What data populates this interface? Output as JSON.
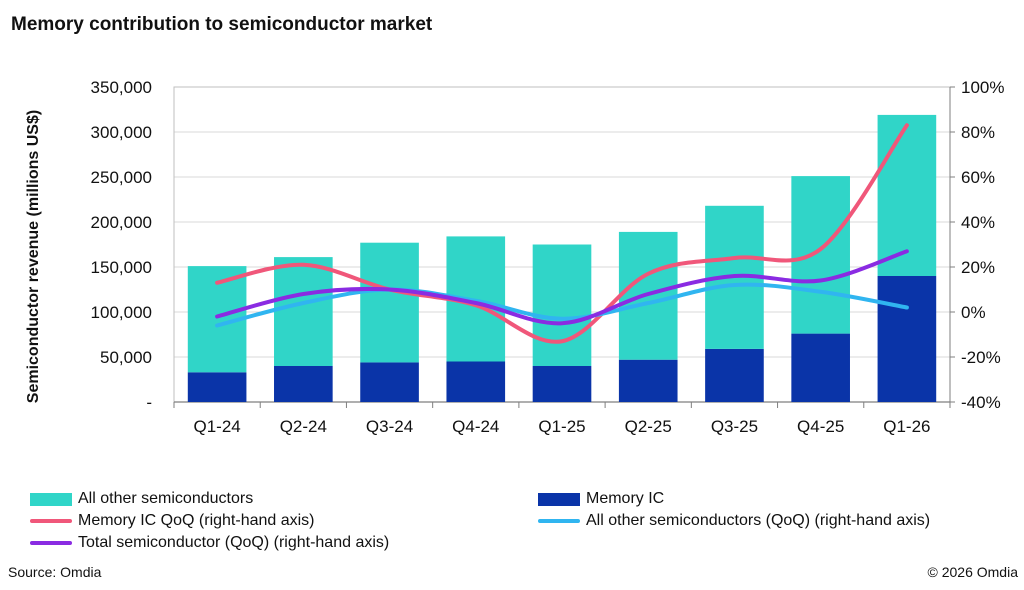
{
  "chart_data": {
    "type": "bar",
    "title": "Memory contribution to semiconductor market",
    "ylabel": "Semiconductor revenue (millions US$)",
    "ylim": [
      0,
      350000
    ],
    "y_ticks": [
      "-",
      "50,000",
      "100,000",
      "150,000",
      "200,000",
      "250,000",
      "300,000",
      "350,000"
    ],
    "y2lim": [
      -40,
      100
    ],
    "y2_ticks": [
      "-40%",
      "-20%",
      "0%",
      "20%",
      "40%",
      "60%",
      "80%",
      "100%"
    ],
    "categories": [
      "Q1-24",
      "Q2-24",
      "Q3-24",
      "Q4-24",
      "Q1-25",
      "Q2-25",
      "Q3-25",
      "Q4-25",
      "Q1-26"
    ],
    "stacked": true,
    "bar_series": [
      {
        "name": "Memory IC",
        "color": "#0a34a8",
        "values": [
          33000,
          40000,
          44000,
          45000,
          40000,
          47000,
          59000,
          76000,
          140000
        ]
      },
      {
        "name": "All other semiconductors",
        "color": "#30d5c8",
        "values": [
          118000,
          121000,
          133000,
          139000,
          135000,
          142000,
          159000,
          175000,
          179000
        ]
      }
    ],
    "line_series": [
      {
        "name": "Memory IC QoQ (right-hand axis)",
        "color": "#f0577a",
        "axis": "right",
        "values": [
          13,
          21,
          10,
          3,
          -13,
          17,
          24,
          28,
          83
        ]
      },
      {
        "name": "All other semiconductors (QoQ) (right-hand axis)",
        "color": "#30b5f0",
        "axis": "right",
        "values": [
          -6,
          4,
          10,
          5,
          -3,
          4,
          12,
          9,
          2
        ]
      },
      {
        "name": "Total semiconductor (QoQ) (right-hand axis)",
        "color": "#8a2be2",
        "axis": "right",
        "values": [
          -2,
          8,
          10,
          4,
          -5,
          8,
          16,
          14,
          27
        ]
      }
    ],
    "grid": true,
    "legend_position": "bottom"
  },
  "footer": {
    "source": "Source: Omdia",
    "copyright": "© 2026 Omdia"
  }
}
